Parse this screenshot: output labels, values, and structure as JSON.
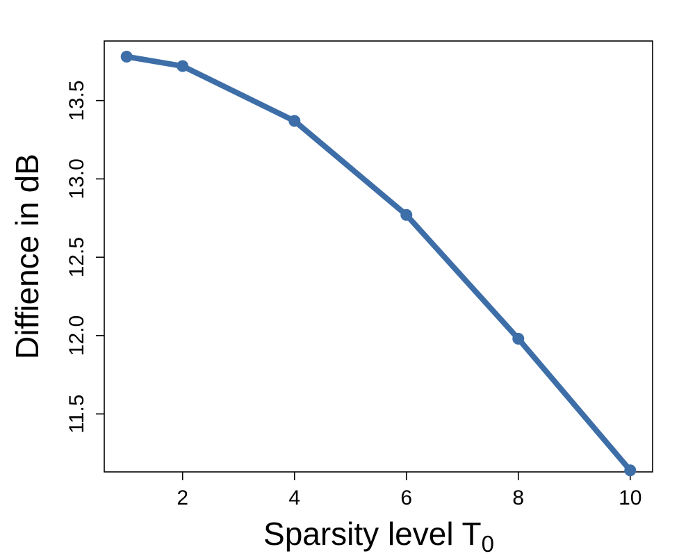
{
  "chart_data": {
    "type": "line",
    "title": "",
    "xlabel": "Sparsity level T",
    "xlabel_subscript": "0",
    "ylabel": "Diffience in dB",
    "x": [
      1,
      2,
      4,
      6,
      8,
      10
    ],
    "series": [
      {
        "values": [
          13.78,
          13.72,
          13.37,
          12.77,
          11.98,
          11.14
        ],
        "color": "#3d6ea8"
      }
    ],
    "xlim": [
      0.6,
      10.4
    ],
    "ylim": [
      11.13,
      13.88
    ],
    "xticks": [
      2,
      4,
      6,
      8,
      10
    ],
    "xtick_labels": [
      "2",
      "4",
      "6",
      "8",
      "10"
    ],
    "yticks": [
      11.5,
      12.0,
      12.5,
      13.0,
      13.5
    ],
    "ytick_labels": [
      "11.5",
      "12.0",
      "12.5",
      "13.0",
      "13.5"
    ],
    "grid": false,
    "markers": "filled-circle",
    "legend": "none"
  }
}
